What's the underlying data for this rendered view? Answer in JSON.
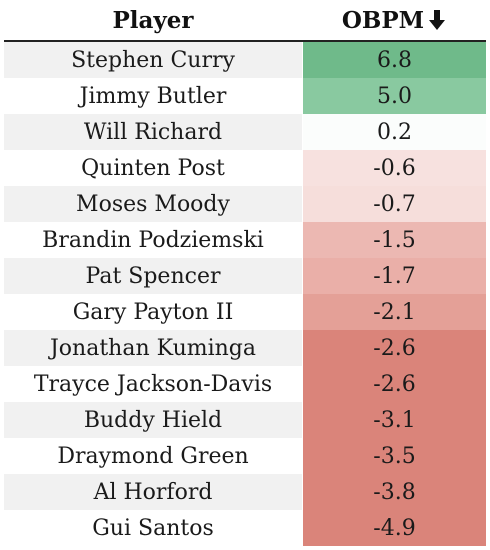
{
  "table": {
    "columns": {
      "player": "Player",
      "obpm": "OBPM"
    },
    "sort_icon": "arrow-down-icon",
    "rows": [
      {
        "player": "Stephen Curry",
        "obpm": "6.8",
        "color": "#6fba8a"
      },
      {
        "player": "Jimmy Butler",
        "obpm": "5.0",
        "color": "#89c9a0"
      },
      {
        "player": "Will Richard",
        "obpm": "0.2",
        "color": "#fbfdfc"
      },
      {
        "player": "Quinten Post",
        "obpm": "-0.6",
        "color": "#f7e1df"
      },
      {
        "player": "Moses Moody",
        "obpm": "-0.7",
        "color": "#f6dedb"
      },
      {
        "player": "Brandin Podziemski",
        "obpm": "-1.5",
        "color": "#ecb8b2"
      },
      {
        "player": "Pat Spencer",
        "obpm": "-1.7",
        "color": "#eaafa8"
      },
      {
        "player": "Gary Payton II",
        "obpm": "-2.1",
        "color": "#e4a097"
      },
      {
        "player": "Jonathan Kuminga",
        "obpm": "-2.6",
        "color": "#da847a"
      },
      {
        "player": "Trayce Jackson-Davis",
        "obpm": "-2.6",
        "color": "#da847a"
      },
      {
        "player": "Buddy Hield",
        "obpm": "-3.1",
        "color": "#da847a"
      },
      {
        "player": "Draymond Green",
        "obpm": "-3.5",
        "color": "#da847a"
      },
      {
        "player": "Al Horford",
        "obpm": "-3.8",
        "color": "#da847a"
      },
      {
        "player": "Gui Santos",
        "obpm": "-4.9",
        "color": "#da847a"
      }
    ]
  }
}
